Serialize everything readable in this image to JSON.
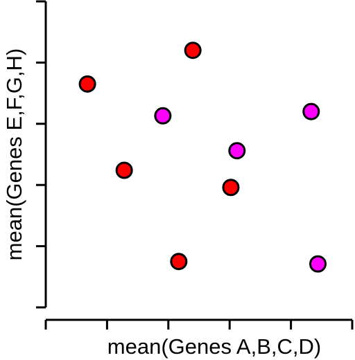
{
  "chart_data": {
    "type": "scatter",
    "title": "",
    "xlabel": "mean(Genes A,B,C,D)",
    "ylabel": "mean(Genes E,F,G,H)",
    "xlim": [
      0,
      5
    ],
    "ylim": [
      0,
      5
    ],
    "x_ticks": [
      0,
      1,
      2,
      3,
      4,
      5
    ],
    "y_ticks": [
      0,
      1,
      2,
      3,
      4,
      5
    ],
    "show_tick_labels": false,
    "grid": false,
    "legend": "none",
    "series": [
      {
        "color": "#ff0000",
        "points": [
          {
            "x": 0.68,
            "y": 3.65
          },
          {
            "x": 2.4,
            "y": 4.2
          },
          {
            "x": 1.28,
            "y": 2.24
          },
          {
            "x": 3.02,
            "y": 1.96
          },
          {
            "x": 2.17,
            "y": 0.75
          }
        ]
      },
      {
        "color": "#ff00ff",
        "points": [
          {
            "x": 1.91,
            "y": 3.13
          },
          {
            "x": 4.33,
            "y": 3.2
          },
          {
            "x": 3.12,
            "y": 2.56
          },
          {
            "x": 4.44,
            "y": 0.71
          }
        ]
      }
    ]
  }
}
